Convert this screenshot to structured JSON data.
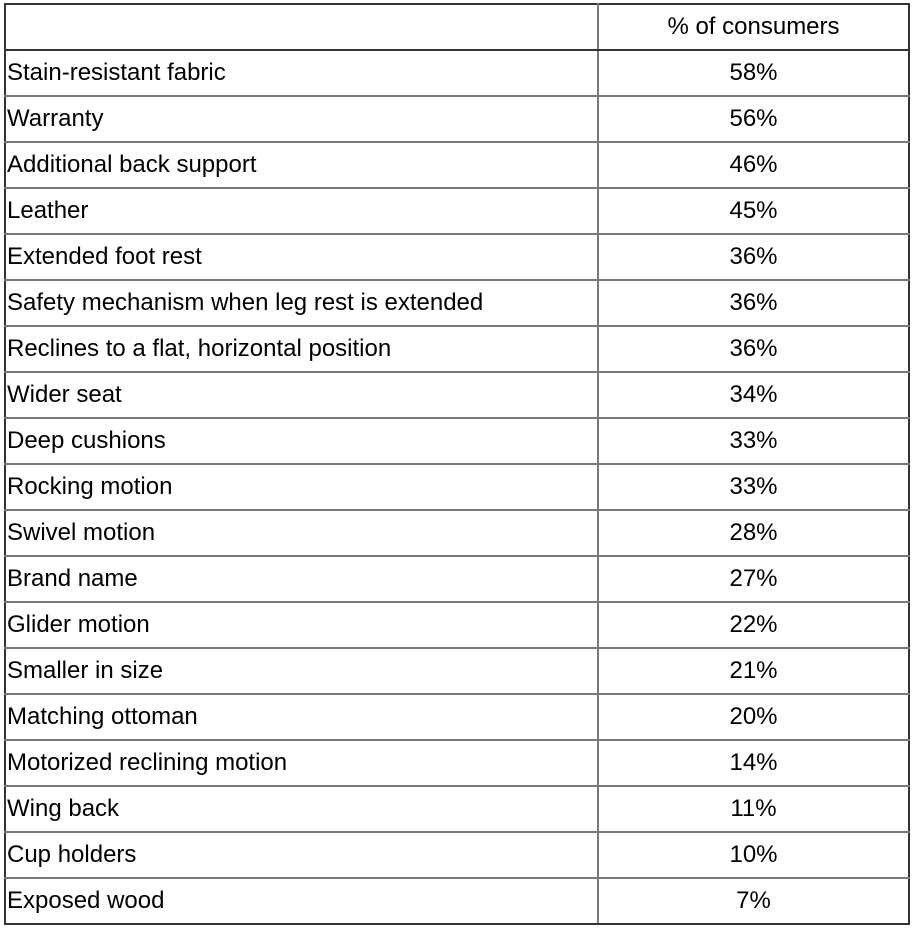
{
  "chart_data": {
    "type": "table",
    "columns": [
      "",
      "% of consumers"
    ],
    "rows": [
      {
        "label": "Stain-resistant fabric",
        "value": "58%"
      },
      {
        "label": "Warranty",
        "value": "56%"
      },
      {
        "label": "Additional back support",
        "value": "46%"
      },
      {
        "label": "Leather",
        "value": "45%"
      },
      {
        "label": "Extended foot rest",
        "value": "36%"
      },
      {
        "label": "Safety mechanism when leg rest is extended",
        "value": "36%"
      },
      {
        "label": "Reclines to a flat, horizontal position",
        "value": "36%"
      },
      {
        "label": "Wider seat",
        "value": "34%"
      },
      {
        "label": "Deep cushions",
        "value": "33%"
      },
      {
        "label": "Rocking motion",
        "value": "33%"
      },
      {
        "label": "Swivel motion",
        "value": "28%"
      },
      {
        "label": "Brand name",
        "value": "27%"
      },
      {
        "label": "Glider motion",
        "value": "22%"
      },
      {
        "label": "Smaller in size",
        "value": "21%"
      },
      {
        "label": "Matching ottoman",
        "value": "20%"
      },
      {
        "label": "Motorized reclining motion",
        "value": "14%"
      },
      {
        "label": "Wing back",
        "value": "11%"
      },
      {
        "label": "Cup holders",
        "value": "10%"
      },
      {
        "label": "Exposed wood",
        "value": "7%"
      }
    ]
  }
}
